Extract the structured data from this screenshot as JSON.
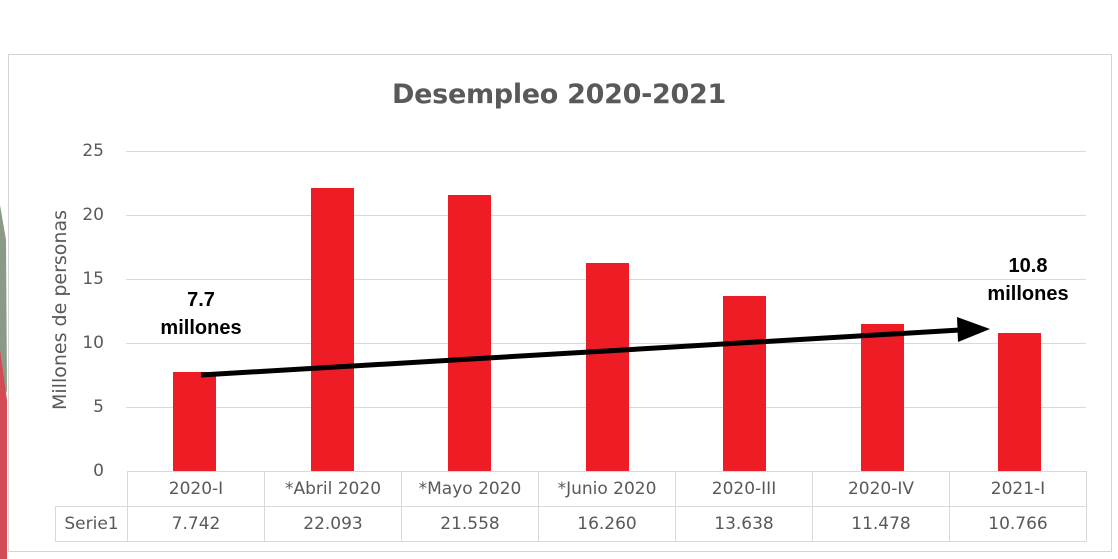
{
  "chart_data": {
    "type": "bar",
    "title": "Desempleo 2020-2021",
    "xlabel": "",
    "ylabel": "Millones de personas",
    "ylim": [
      0,
      25
    ],
    "yticks": [
      "0",
      "5",
      "10",
      "15",
      "20",
      "25"
    ],
    "grid": true,
    "legend": "data table (Serie1)",
    "categories": [
      "2020-I",
      "*Abril 2020",
      "*Mayo 2020",
      "*Junio 2020",
      "2020-III",
      "2020-IV",
      "2021-I"
    ],
    "series": [
      {
        "name": "Serie1",
        "values": [
          7.742,
          22.093,
          21.558,
          16.26,
          13.638,
          11.478,
          10.766
        ],
        "color": "#ee1c25"
      }
    ],
    "table": {
      "row_label": "Serie1",
      "values_text": [
        "7.742",
        "22.093",
        "21.558",
        "16.260",
        "13.638",
        "11.478",
        "10.766"
      ]
    },
    "annotations": [
      {
        "text_line1": "7.7",
        "text_line2": "millones",
        "near": "2020-I"
      },
      {
        "text_line1": "10.8",
        "text_line2": "millones",
        "near": "2021-I"
      },
      {
        "type": "arrow",
        "from": "2020-I",
        "to": "2021-I",
        "color": "#000000"
      }
    ]
  },
  "colors": {
    "bar": "#ee1c25",
    "text": "#595959",
    "grid": "#d9d9d9",
    "edge_green": "#8a9a86",
    "edge_red": "#d24b55"
  }
}
